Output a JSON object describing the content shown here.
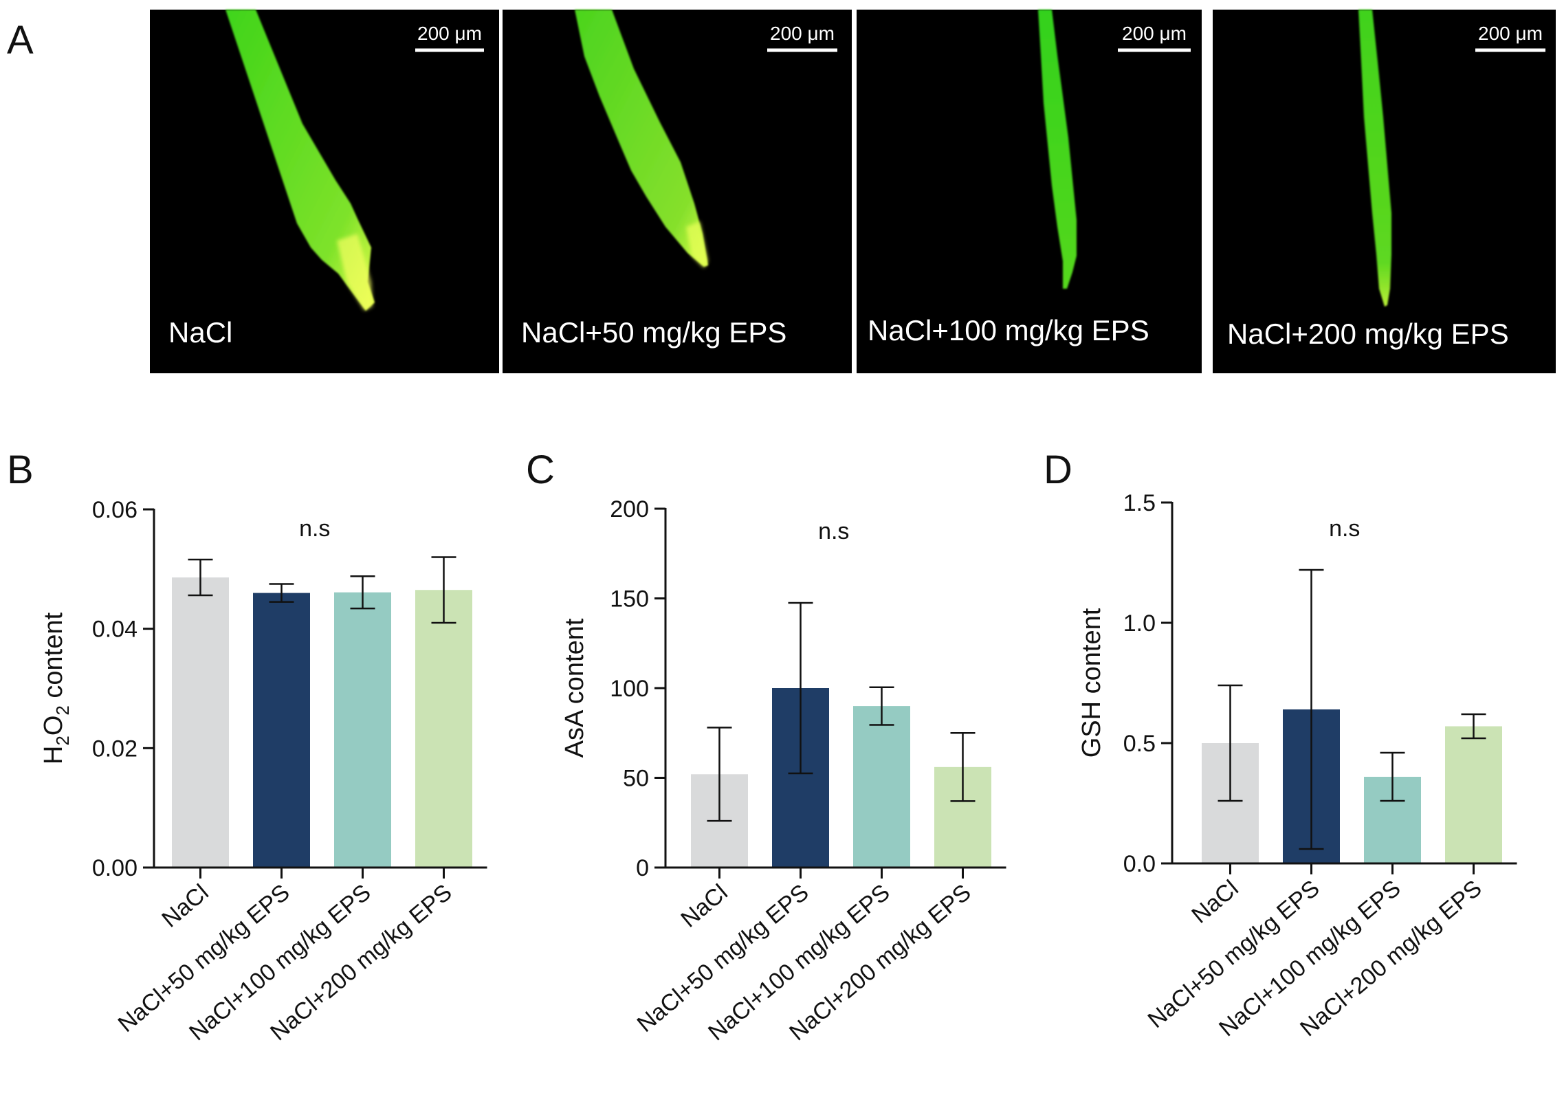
{
  "panel_a": {
    "letter": "A",
    "micrographs": [
      {
        "label": "NaCl",
        "scalebar": "200 μm"
      },
      {
        "label": "NaCl+50 mg/kg EPS",
        "scalebar": "200 μm"
      },
      {
        "label": "NaCl+100 mg/kg EPS",
        "scalebar": "200 μm"
      },
      {
        "label": "NaCl+200 mg/kg EPS",
        "scalebar": "200 μm"
      }
    ]
  },
  "colors": {
    "background": "#000000",
    "fluorescence": "#3cd21e",
    "fluorescence_bright": "#d4ff3c",
    "bar_nacl": "#d9dadb",
    "bar_eps50": "#1f3d66",
    "bar_eps100": "#95cbc2",
    "bar_eps200": "#cbe3b4"
  },
  "chart_data": [
    {
      "type": "bar",
      "letter": "B",
      "annotation": "n.s",
      "ylabel": {
        "main": "H",
        "sub1": "2",
        "mid": "O",
        "sub2": "2",
        "rest": " content"
      },
      "categories": [
        "NaCl",
        "NaCl+50 mg/kg EPS",
        "NaCl+100 mg/kg EPS",
        "NaCl+200 mg/kg EPS"
      ],
      "values": [
        0.0486,
        0.046,
        0.0461,
        0.0465
      ],
      "errors": [
        0.003,
        0.0015,
        0.0027,
        0.0055
      ],
      "ylim": [
        0,
        0.06
      ],
      "yticks": [
        0,
        0.02,
        0.04,
        0.06
      ],
      "ytick_labels": [
        "0.00",
        "0.02",
        "0.04",
        "0.06"
      ]
    },
    {
      "type": "bar",
      "letter": "C",
      "annotation": "n.s",
      "ylabel": "AsA content",
      "categories": [
        "NaCl",
        "NaCl+50 mg/kg EPS",
        "NaCl+100 mg/kg EPS",
        "NaCl+200 mg/kg EPS"
      ],
      "values": [
        52,
        100,
        90,
        56
      ],
      "errors": [
        26,
        47.5,
        10.5,
        19
      ],
      "ylim": [
        0,
        200
      ],
      "yticks": [
        0,
        50,
        100,
        150,
        200
      ],
      "ytick_labels": [
        "0",
        "50",
        "100",
        "150",
        "200"
      ]
    },
    {
      "type": "bar",
      "letter": "D",
      "annotation": "n.s",
      "ylabel": "GSH content",
      "categories": [
        "NaCl",
        "NaCl+50 mg/kg EPS",
        "NaCl+100 mg/kg EPS",
        "NaCl+200 mg/kg EPS"
      ],
      "values": [
        0.5,
        0.64,
        0.36,
        0.57
      ],
      "errors": [
        0.24,
        0.58,
        0.1,
        0.05
      ],
      "ylim": [
        0,
        1.5
      ],
      "yticks": [
        0,
        0.5,
        1.0,
        1.5
      ],
      "ytick_labels": [
        "0.0",
        "0.5",
        "1.0",
        "1.5"
      ]
    }
  ]
}
